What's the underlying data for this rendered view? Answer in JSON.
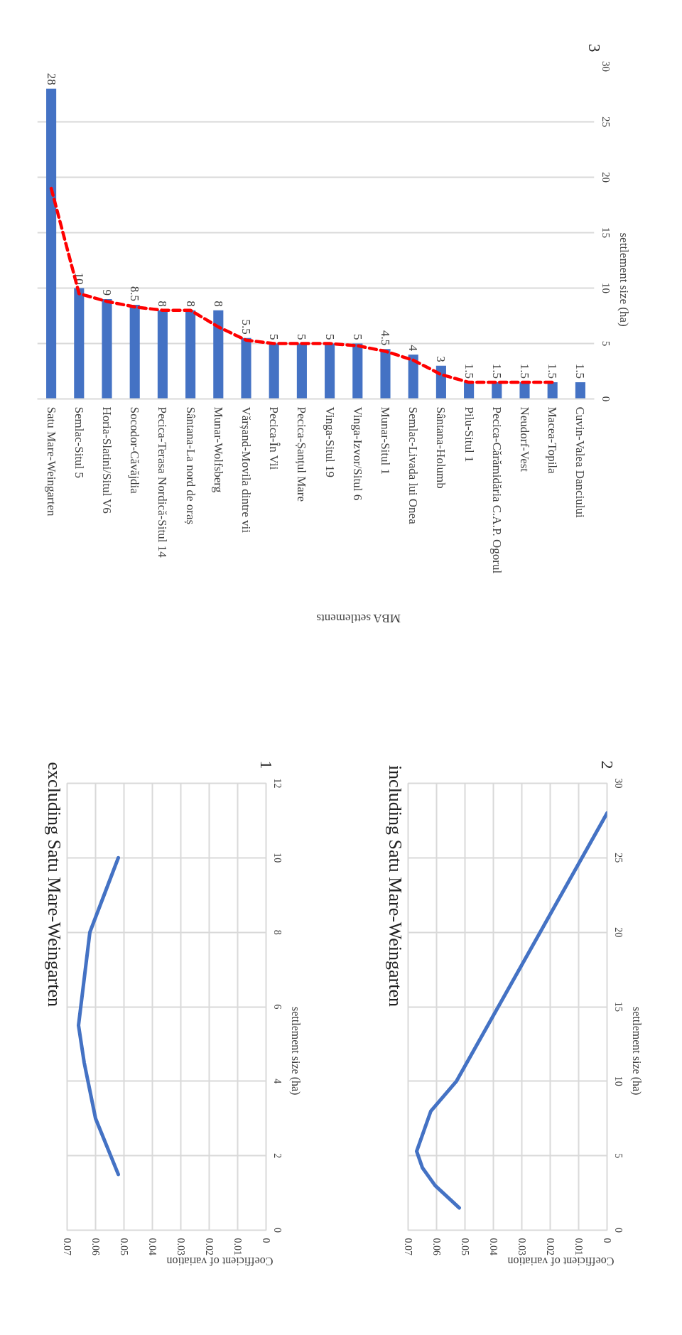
{
  "chart_data": [
    {
      "type": "bar",
      "xlabel": "MBA settlements",
      "ylabel": "settlement size (ha)",
      "categories": [
        "Satu Mare-Weingarten",
        "Semlac-Situl 5",
        "Horia-Slatini/Situl V6",
        "Socodor-Căvăjdia",
        "Pecica-Terasa Nordică-Situl 14",
        "Sântana-La nord de oraș",
        "Munar-Wolfsberg",
        "Vărșand-Movila dintre vii",
        "Pecica-În Vii",
        "Pecica-Șanțul Mare",
        "Vinga-Situl 19",
        "Vinga-Izvor/Situl 6",
        "Munar-Situl 1",
        "Semlac-Livada lui Onea",
        "Sântana-Holumb",
        "Pilu-Situl 1",
        "Pecica-Cărămidăria C.A.P. Ogorul",
        "Neudorf-Vest",
        "Macea-Topila",
        "Cuvin-Valea Danciului"
      ],
      "series": [
        {
          "type": "bar",
          "color": "#4472c4",
          "values": [
            28,
            10,
            9,
            8.5,
            8,
            8,
            8,
            5.5,
            5,
            5,
            5,
            5,
            4.5,
            4,
            3,
            1.5,
            1.5,
            1.5,
            1.5,
            1.5
          ],
          "value_labels": [
            "28",
            "10",
            "9",
            "8.5",
            "8",
            "8",
            "8",
            "5.5",
            "5",
            "5",
            "5",
            "5",
            "4.5",
            "4",
            "3",
            "1.5",
            "1.5",
            "1.5",
            "1.5",
            "1.5"
          ]
        },
        {
          "type": "line",
          "color": "#ff0000",
          "line_style": "dashed",
          "values": [
            19,
            9.5,
            8.8,
            8.3,
            8,
            8,
            6.5,
            5.3,
            5,
            5,
            5,
            4.8,
            4.3,
            3.5,
            2.2,
            1.5,
            1.5,
            1.5,
            1.5,
            null
          ]
        }
      ],
      "ylim": [
        0,
        30
      ],
      "yticks": [
        0,
        5,
        10,
        15,
        20,
        25,
        30
      ],
      "grid": "y",
      "annotations": [
        "3"
      ]
    },
    {
      "type": "line",
      "title": "excluding Satu Mare-Weingarten",
      "xlabel": "Coefficient of variation",
      "ylabel": "settlement size (ha)",
      "xlim": [
        0.07,
        0
      ],
      "xticks": [
        0.07,
        0.06,
        0.05,
        0.04,
        0.03,
        0.02,
        0.01,
        0
      ],
      "ylim": [
        0,
        12
      ],
      "yticks": [
        0,
        2,
        4,
        6,
        8,
        10,
        12
      ],
      "grid": true,
      "series": [
        {
          "color": "#4472c4",
          "x": [
            0.052,
            0.06,
            0.064,
            0.066,
            0.062,
            0.057,
            0.052
          ],
          "values": [
            1.5,
            3,
            4.5,
            5.5,
            8,
            9,
            10
          ]
        }
      ],
      "annotations": [
        "1"
      ]
    },
    {
      "type": "line",
      "title": "including Satu Mare-Weingarten",
      "xlabel": "Coefficient of variation",
      "ylabel": "settlement size (ha)",
      "xlim": [
        0.07,
        0
      ],
      "xticks": [
        0.07,
        0.06,
        0.05,
        0.04,
        0.03,
        0.02,
        0.01,
        0
      ],
      "ylim": [
        0,
        30
      ],
      "yticks": [
        0,
        5,
        10,
        15,
        20,
        25,
        30
      ],
      "grid": true,
      "series": [
        {
          "color": "#4472c4",
          "x": [
            0.052,
            0.0605,
            0.065,
            0.067,
            0.062,
            0.0575,
            0.053,
            0
          ],
          "values": [
            1.5,
            3,
            4.2,
            5.3,
            8,
            9,
            10,
            28
          ]
        }
      ],
      "annotations": [
        "2"
      ]
    }
  ]
}
